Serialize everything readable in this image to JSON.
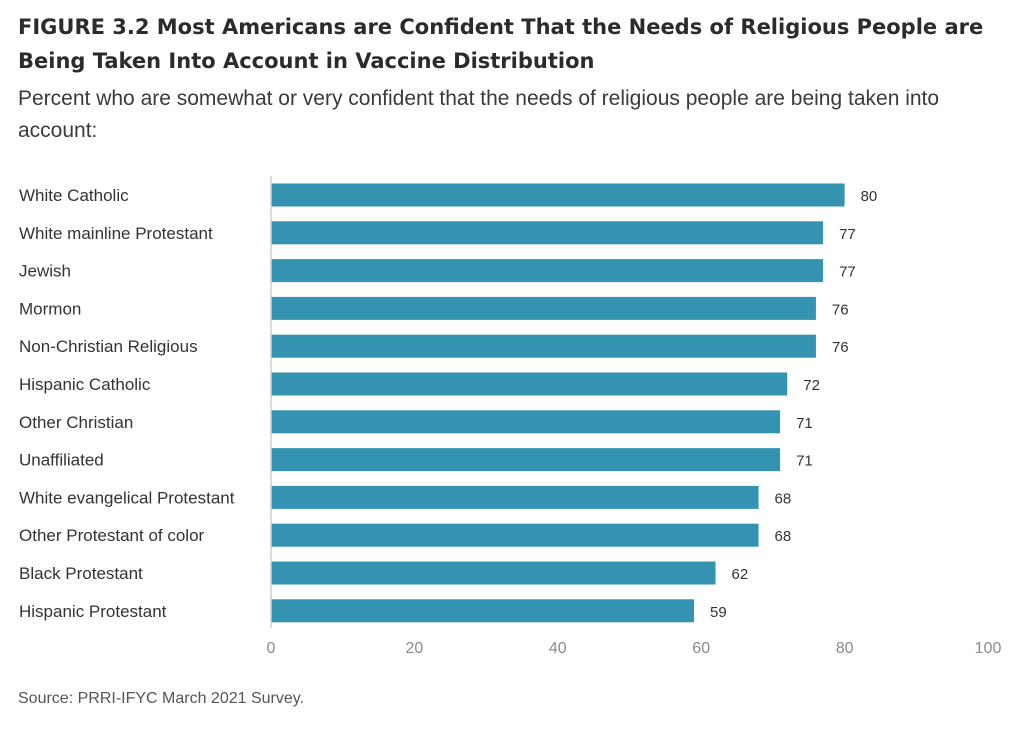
{
  "figure": {
    "title": "FIGURE 3.2  Most Americans are Confident That the Needs of Religious People are Being Taken Into Account in Vaccine Distribution",
    "subtitle": "Percent who are somewhat or very confident that the needs of religious people are being taken into account:",
    "source": "Source: PRRI-IFYC March 2021 Survey."
  },
  "colors": {
    "bar": "#3393b0",
    "axis": "#cfcfcf"
  },
  "chart_data": {
    "type": "bar",
    "orientation": "horizontal",
    "categories": [
      "White Catholic",
      "White mainline Protestant",
      "Jewish",
      "Mormon",
      "Non-Christian Religious",
      "Hispanic Catholic",
      "Other Christian",
      "Unaffiliated",
      "White evangelical Protestant",
      "Other Protestant of color",
      "Black Protestant",
      "Hispanic Protestant"
    ],
    "values": [
      80,
      77,
      77,
      76,
      76,
      72,
      71,
      71,
      68,
      68,
      62,
      59
    ],
    "xlim": [
      0,
      100
    ],
    "xticks": [
      0,
      20,
      40,
      60,
      80,
      100
    ],
    "grid": false
  }
}
